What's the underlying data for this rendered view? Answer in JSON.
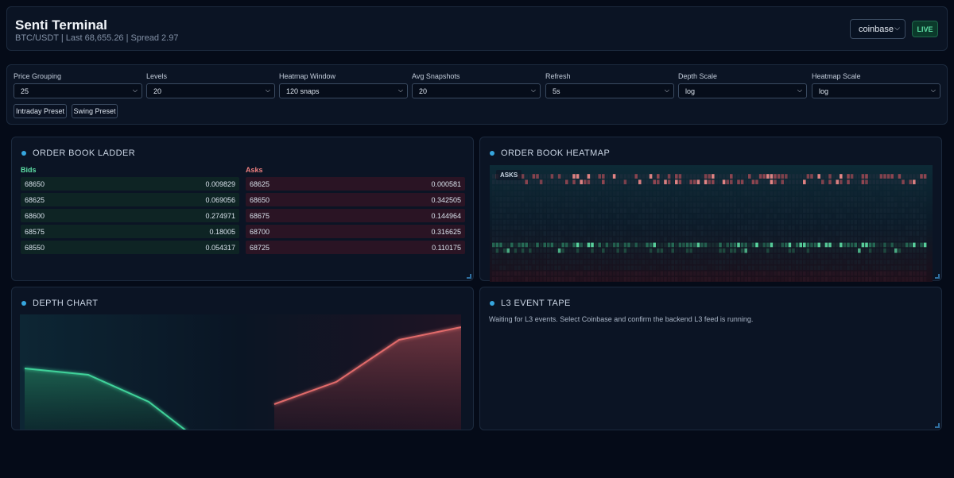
{
  "header": {
    "title": "Senti Terminal",
    "subtitle": "BTC/USDT | Last 68,655.26 | Spread 2.97",
    "exchange": "coinbase",
    "live_label": "LIVE"
  },
  "controls": {
    "price_grouping": {
      "label": "Price Grouping",
      "value": "25"
    },
    "levels": {
      "label": "Levels",
      "value": "20"
    },
    "heatmap_window": {
      "label": "Heatmap Window",
      "value": "120 snaps"
    },
    "avg_snapshots": {
      "label": "Avg Snapshots",
      "value": "20"
    },
    "refresh": {
      "label": "Refresh",
      "value": "5s"
    },
    "depth_scale": {
      "label": "Depth Scale",
      "value": "log"
    },
    "heatmap_scale": {
      "label": "Heatmap Scale",
      "value": "log"
    },
    "intraday_preset": "Intraday Preset",
    "swing_preset": "Swing Preset"
  },
  "ladder": {
    "title": "ORDER BOOK LADDER",
    "bids_label": "Bids",
    "asks_label": "Asks",
    "bids": [
      {
        "price": "68650",
        "size": "0.009829"
      },
      {
        "price": "68625",
        "size": "0.069056"
      },
      {
        "price": "68600",
        "size": "0.274971"
      },
      {
        "price": "68575",
        "size": "0.18005"
      },
      {
        "price": "68550",
        "size": "0.054317"
      }
    ],
    "asks": [
      {
        "price": "68625",
        "size": "0.000581"
      },
      {
        "price": "68650",
        "size": "0.342505"
      },
      {
        "price": "68675",
        "size": "0.144964"
      },
      {
        "price": "68700",
        "size": "0.316625"
      },
      {
        "price": "68725",
        "size": "0.110175"
      }
    ]
  },
  "heatmap": {
    "title": "ORDER BOOK HEATMAP",
    "asks_tag": "ASKS"
  },
  "depth": {
    "title": "DEPTH CHART",
    "bid_color": "#3fd29a",
    "ask_color": "#e06a6a"
  },
  "tape": {
    "title": "L3 EVENT TAPE",
    "message": "Waiting for L3 events. Select Coinbase and confirm the backend L3 feed is running."
  },
  "colors": {
    "accent": "#36a6de",
    "bid": "#5ee0a6",
    "ask": "#f08080"
  }
}
